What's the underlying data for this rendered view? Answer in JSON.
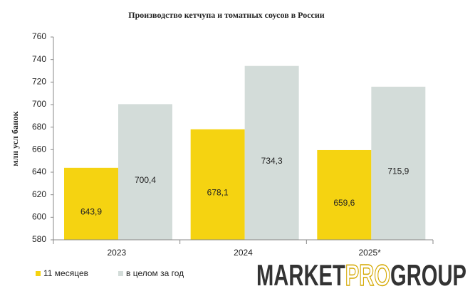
{
  "chart_data": {
    "type": "bar",
    "title": "Производство кетчупа и томатных соусов в России",
    "y_label": "млн усл банок",
    "categories": [
      "2023",
      "2024",
      "2025*"
    ],
    "series": [
      {
        "name": "11 месяцев",
        "color": "#f5d311",
        "values": [
          643.9,
          678.1,
          659.6
        ],
        "value_labels": [
          "643,9",
          "678,1",
          "659,6"
        ]
      },
      {
        "name": "в целом за год",
        "color": "#d3dcd9",
        "values": [
          700.4,
          734.3,
          715.9
        ],
        "value_labels": [
          "700,4",
          "734,3",
          "715,9"
        ]
      }
    ],
    "ylim": [
      580,
      760
    ],
    "yticks": [
      580,
      600,
      620,
      640,
      660,
      680,
      700,
      720,
      740,
      760
    ],
    "grid": false,
    "legend": "bottom-left",
    "logo": [
      "MARKET",
      "PRO",
      "GROUP"
    ]
  }
}
